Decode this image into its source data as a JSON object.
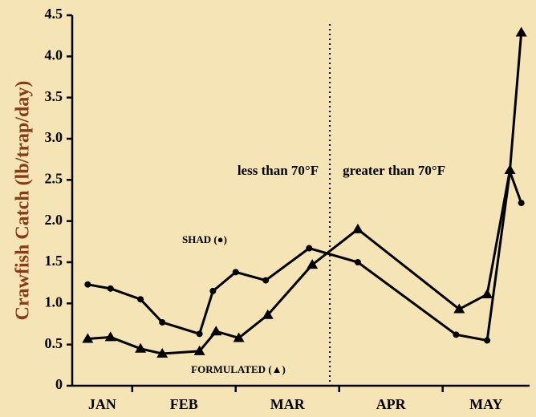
{
  "chart_data": {
    "type": "line",
    "y_label": "Crawfish Catch (lb/trap/day)",
    "categories": [
      "JAN",
      "FEB",
      "MAR",
      "APR",
      "MAY"
    ],
    "xlim": [
      0.42,
      4.84
    ],
    "xticks": [
      1,
      2,
      3,
      4
    ],
    "ylim": [
      0,
      4.5
    ],
    "yticks": [
      0,
      0.5,
      {
        "value": 1,
        "label": "1.0"
      },
      1.5,
      {
        "value": 2,
        "label": "2.0"
      },
      2.5,
      {
        "value": 3,
        "label": "3.0"
      },
      3.5,
      {
        "value": 4,
        "label": "4.0"
      },
      4.5
    ],
    "series": [
      {
        "name": "SHAD (●)",
        "marker": "circle",
        "color": "#000000",
        "x": [
          0.57,
          0.79,
          1.08,
          1.29,
          1.65,
          1.78,
          2.0,
          2.29,
          2.71,
          3.18,
          4.13,
          4.43,
          4.65,
          4.76
        ],
        "values": [
          1.23,
          1.18,
          1.05,
          0.77,
          0.63,
          1.15,
          1.38,
          1.28,
          1.67,
          1.5,
          0.62,
          0.55,
          2.6,
          2.22
        ]
      },
      {
        "name": "FORMULATED (▲)",
        "marker": "triangle",
        "color": "#000000",
        "x": [
          0.57,
          0.79,
          1.08,
          1.29,
          1.65,
          1.81,
          2.03,
          2.31,
          2.74,
          3.18,
          4.16,
          4.43,
          4.65,
          4.76
        ],
        "values": [
          0.57,
          0.59,
          0.45,
          0.39,
          0.42,
          0.66,
          0.58,
          0.86,
          1.47,
          1.9,
          0.93,
          1.11,
          2.62,
          4.29
        ]
      }
    ],
    "divider_x": 2.91,
    "annotations": [
      "less than 70°F",
      "greater than 70°F"
    ]
  }
}
